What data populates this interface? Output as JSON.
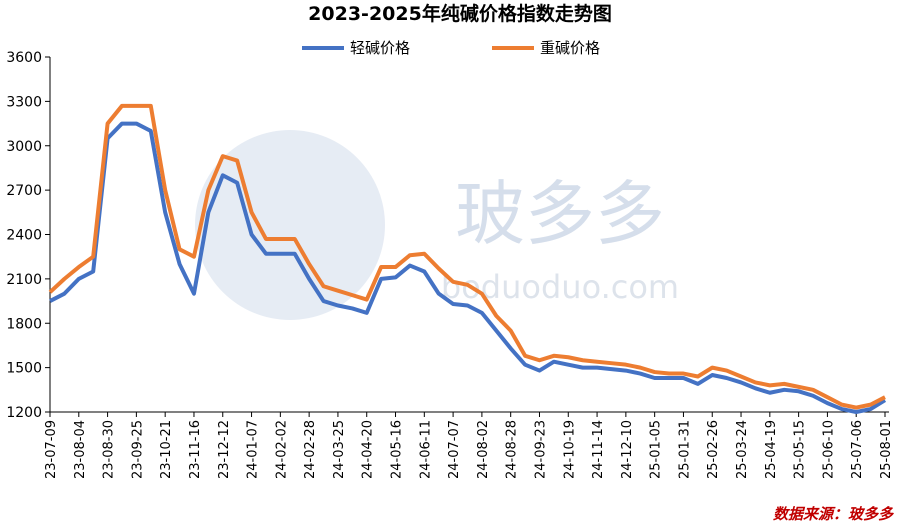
{
  "chart_data": {
    "type": "line",
    "title": "2023-2025年纯碱价格指数走势图",
    "source": "数据来源：玻多多",
    "watermark": [
      "玻多多",
      "boduoduo.com"
    ],
    "categories": [
      "23-07-09",
      null,
      "23-08-04",
      null,
      "23-08-30",
      null,
      "23-09-25",
      null,
      "23-10-21",
      null,
      "23-11-16",
      null,
      "23-12-12",
      null,
      "24-01-07",
      null,
      "24-02-02",
      null,
      "24-02-28",
      null,
      "24-03-25",
      null,
      "24-04-20",
      null,
      "24-05-16",
      null,
      "24-06-11",
      null,
      "24-07-07",
      null,
      "24-08-02",
      null,
      "24-08-28",
      null,
      "24-09-23",
      null,
      "24-10-19",
      null,
      "24-11-14",
      null,
      "24-12-10",
      null,
      "25-01-05",
      null,
      "25-01-31",
      null,
      "25-02-26",
      null,
      "25-03-24",
      null,
      "25-04-19",
      null,
      "25-05-15",
      null,
      "25-06-10",
      null,
      "25-07-06",
      null,
      "25-08-01"
    ],
    "series": [
      {
        "name": "轻碱价格",
        "color": "#4472c4",
        "values": [
          1950,
          2000,
          2100,
          2150,
          3050,
          3150,
          3150,
          3100,
          2550,
          2200,
          2000,
          2550,
          2800,
          2750,
          2400,
          2270,
          2270,
          2270,
          2100,
          1950,
          1920,
          1900,
          1870,
          2100,
          2110,
          2190,
          2150,
          2000,
          1930,
          1920,
          1870,
          1750,
          1630,
          1520,
          1480,
          1540,
          1520,
          1500,
          1500,
          1490,
          1480,
          1460,
          1430,
          1430,
          1430,
          1390,
          1450,
          1430,
          1400,
          1360,
          1330,
          1350,
          1340,
          1310,
          1260,
          1220,
          1200,
          1220,
          1280
        ]
      },
      {
        "name": "重碱价格",
        "color": "#ed7d31",
        "values": [
          2010,
          2100,
          2180,
          2250,
          3150,
          3270,
          3270,
          3270,
          2700,
          2300,
          2250,
          2700,
          2930,
          2900,
          2550,
          2370,
          2370,
          2370,
          2200,
          2050,
          2020,
          1990,
          1960,
          2180,
          2180,
          2260,
          2270,
          2170,
          2080,
          2060,
          2000,
          1850,
          1750,
          1580,
          1550,
          1580,
          1570,
          1550,
          1540,
          1530,
          1520,
          1500,
          1470,
          1460,
          1460,
          1440,
          1500,
          1480,
          1440,
          1400,
          1380,
          1390,
          1370,
          1350,
          1300,
          1250,
          1230,
          1250,
          1300
        ]
      }
    ],
    "ylim": [
      1200,
      3600
    ],
    "yticks": [
      1200,
      1500,
      1800,
      2100,
      2400,
      2700,
      3000,
      3300,
      3600
    ],
    "grid": false
  }
}
